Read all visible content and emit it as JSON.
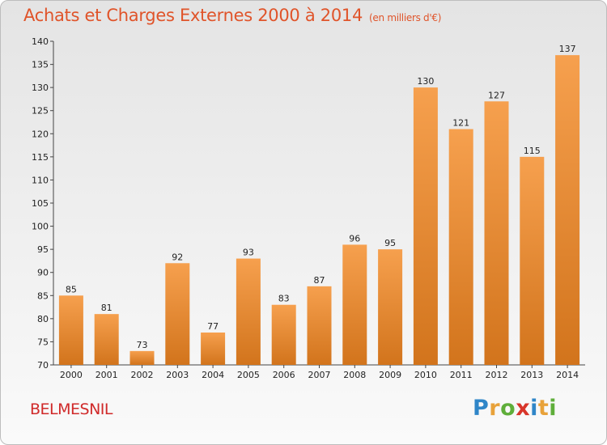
{
  "chart_data": {
    "type": "bar",
    "title": "Achats et Charges Externes 2000 à 2014",
    "subtitle": "(en milliers d'€)",
    "categories": [
      "2000",
      "2001",
      "2002",
      "2003",
      "2004",
      "2005",
      "2006",
      "2007",
      "2008",
      "2009",
      "2010",
      "2011",
      "2012",
      "2013",
      "2014"
    ],
    "values": [
      85,
      81,
      73,
      92,
      77,
      93,
      83,
      87,
      96,
      95,
      130,
      121,
      127,
      115,
      137
    ],
    "ylim": [
      70,
      140
    ],
    "yticks": [
      70,
      75,
      80,
      85,
      90,
      95,
      100,
      105,
      110,
      115,
      120,
      125,
      130,
      135,
      140
    ],
    "grid": false,
    "xlabel": "",
    "ylabel": "",
    "bar_color_top": "#f6a04e",
    "bar_color_bottom": "#d2741c"
  },
  "place_name": "BELMESNIL",
  "logo": {
    "letters": [
      "P",
      "r",
      "o",
      "x",
      "i",
      "t",
      "i"
    ],
    "colors": [
      "#2f86c8",
      "#e8a23a",
      "#5fae3a",
      "#d8352a",
      "#2f86c8",
      "#e8a23a",
      "#5fae3a"
    ]
  },
  "colors": {
    "title": "#e0542a",
    "place": "#d02a2a"
  }
}
